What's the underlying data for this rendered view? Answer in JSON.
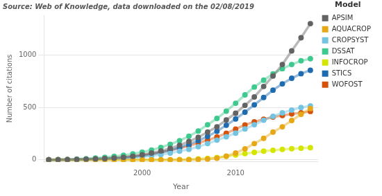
{
  "chart_data": {
    "type": "line",
    "title": "Source: Web of Knowledge, data downloaded on the 02/08/2019",
    "xlabel": "Year",
    "ylabel": "Number of citations",
    "legend_title": "Model",
    "legend": "right",
    "grid": "y",
    "marker": "circle",
    "line_style": "solid",
    "x": [
      1990,
      1991,
      1992,
      1993,
      1994,
      1995,
      1996,
      1997,
      1998,
      1999,
      2000,
      2001,
      2002,
      2003,
      2004,
      2005,
      2006,
      2007,
      2008,
      2009,
      2010,
      2011,
      2012,
      2013,
      2014,
      2015,
      2016,
      2017,
      2018
    ],
    "series": [
      {
        "name": "APSIM",
        "color": "#636363",
        "values": [
          0,
          1,
          2,
          4,
          6,
          9,
          12,
          17,
          24,
          34,
          48,
          65,
          85,
          110,
          140,
          175,
          215,
          265,
          315,
          380,
          445,
          520,
          600,
          700,
          800,
          910,
          1040,
          1165,
          1300
        ]
      },
      {
        "name": "AQUACROP",
        "color": "#E6A817",
        "values": [
          0,
          0,
          0,
          0,
          0,
          0,
          0,
          0,
          0,
          0,
          0,
          0,
          0,
          0,
          0,
          0,
          3,
          7,
          15,
          35,
          65,
          105,
          155,
          205,
          265,
          315,
          375,
          435,
          490
        ]
      },
      {
        "name": "CROPSYST",
        "color": "#74C3E0",
        "values": [
          0,
          0,
          1,
          2,
          3,
          5,
          7,
          10,
          14,
          20,
          28,
          38,
          50,
          65,
          82,
          100,
          125,
          155,
          188,
          220,
          255,
          295,
          335,
          378,
          415,
          448,
          475,
          500,
          515
        ]
      },
      {
        "name": "DSSAT",
        "color": "#3EC98E",
        "values": [
          0,
          2,
          4,
          7,
          11,
          17,
          24,
          33,
          44,
          57,
          73,
          93,
          118,
          148,
          183,
          225,
          275,
          335,
          395,
          465,
          540,
          620,
          695,
          760,
          820,
          870,
          910,
          945,
          965
        ]
      },
      {
        "name": "INFOCROP",
        "color": "#D4E600",
        "values": [
          0,
          0,
          0,
          0,
          0,
          0,
          0,
          0,
          0,
          0,
          0,
          0,
          0,
          1,
          2,
          4,
          8,
          14,
          22,
          33,
          46,
          59,
          71,
          83,
          91,
          99,
          106,
          111,
          116
        ]
      },
      {
        "name": "STICS",
        "color": "#1F6BB0",
        "values": [
          0,
          0,
          1,
          2,
          3,
          5,
          8,
          12,
          18,
          27,
          37,
          52,
          70,
          92,
          118,
          148,
          183,
          223,
          273,
          330,
          390,
          455,
          525,
          595,
          665,
          725,
          778,
          822,
          855
        ]
      },
      {
        "name": "WOFOST",
        "color": "#D4520A",
        "values": [
          0,
          1,
          2,
          4,
          6,
          9,
          13,
          18,
          25,
          33,
          43,
          57,
          72,
          90,
          110,
          133,
          160,
          188,
          218,
          253,
          293,
          333,
          363,
          388,
          408,
          423,
          438,
          448,
          462
        ]
      }
    ],
    "xlim": [
      1989.5,
      2018.8
    ],
    "xticks": [
      2000,
      2010
    ],
    "ylim": [
      -20,
      1380
    ],
    "yticks": [
      0,
      500,
      1000
    ]
  }
}
